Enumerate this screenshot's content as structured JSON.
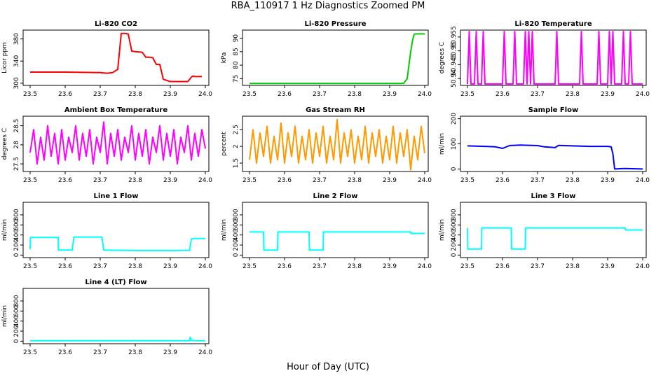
{
  "title": "RBA_110917  1 Hz Diagnostics Zoomed PM",
  "xlabel": "Hour of Day (UTC)",
  "chart_data": [
    {
      "type": "line",
      "title": "Li-820 CO2",
      "ylabel": "Licor ppm",
      "color": "#ff0000",
      "xlim": [
        23.48,
        24.01
      ],
      "ylim": [
        296,
        396
      ],
      "xticks": [
        "23.5",
        "23.6",
        "23.7",
        "23.8",
        "23.9",
        "24.0"
      ],
      "yticks": [
        300,
        340,
        380
      ],
      "series": [
        {
          "x": [
            23.5,
            23.6,
            23.7,
            23.72,
            23.735,
            23.75,
            23.76,
            23.77,
            23.78,
            23.79,
            23.8,
            23.82,
            23.83,
            23.84,
            23.85,
            23.86,
            23.87,
            23.88,
            23.9,
            23.92,
            23.95,
            23.96,
            23.965,
            23.97,
            23.98,
            23.99
          ],
          "y": [
            320,
            320,
            319,
            318,
            319,
            325,
            390,
            390,
            389,
            358,
            357,
            356,
            347,
            347,
            346,
            334,
            334,
            307,
            303,
            303,
            303,
            311,
            313,
            312,
            312,
            312
          ]
        }
      ]
    },
    {
      "type": "line",
      "title": "Li-820 Pressure",
      "ylabel": "kPa",
      "color": "#00cc00",
      "xlim": [
        23.48,
        24.01
      ],
      "ylim": [
        72.5,
        93
      ],
      "xticks": [
        "23.5",
        "23.6",
        "23.7",
        "23.8",
        "23.9",
        "24.0"
      ],
      "yticks": [
        75,
        80,
        85,
        90
      ],
      "series": [
        {
          "x": [
            23.5,
            23.6,
            23.7,
            23.8,
            23.9,
            23.92,
            23.93,
            23.94,
            23.95,
            23.955,
            23.96,
            23.965,
            23.97,
            23.98,
            23.99,
            24.0
          ],
          "y": [
            73.2,
            73.2,
            73.2,
            73.2,
            73.2,
            73.2,
            73.2,
            73.3,
            75,
            80,
            85,
            89,
            91.5,
            91.6,
            91.6,
            91.6
          ]
        }
      ]
    },
    {
      "type": "line",
      "title": "Li-820 Temperature",
      "ylabel": "degrees C",
      "color": "#ff00ff",
      "xlim": [
        23.48,
        24.01
      ],
      "ylim": [
        50.9375,
        50.9575
      ],
      "xticks": [
        "23.5",
        "23.6",
        "23.7",
        "23.8",
        "23.9",
        "24.0"
      ],
      "yticks": [
        50.94,
        50.945,
        50.95,
        50.955
      ],
      "series": [
        {
          "x": [
            23.5,
            23.505,
            23.51,
            23.52,
            23.525,
            23.53,
            23.54,
            23.545,
            23.55,
            23.6,
            23.605,
            23.61,
            23.63,
            23.635,
            23.64,
            23.66,
            23.665,
            23.67,
            23.675,
            23.68,
            23.685,
            23.69,
            23.75,
            23.755,
            23.76,
            23.82,
            23.825,
            23.83,
            23.87,
            23.875,
            23.88,
            23.9,
            23.905,
            23.91,
            23.915,
            23.92,
            23.94,
            23.945,
            23.95,
            23.96,
            23.965,
            23.97,
            24.0
          ],
          "y": [
            50.938,
            50.957,
            50.938,
            50.938,
            50.957,
            50.938,
            50.938,
            50.957,
            50.938,
            50.938,
            50.957,
            50.938,
            50.938,
            50.957,
            50.938,
            50.938,
            50.957,
            50.938,
            50.957,
            50.938,
            50.957,
            50.938,
            50.938,
            50.957,
            50.938,
            50.938,
            50.957,
            50.938,
            50.938,
            50.957,
            50.938,
            50.938,
            50.957,
            50.938,
            50.957,
            50.938,
            50.938,
            50.957,
            50.938,
            50.938,
            50.957,
            50.938,
            50.938
          ]
        }
      ]
    },
    {
      "type": "line",
      "title": "Ambient Box Temperature",
      "ylabel": "degrees C",
      "color": "#ff00ff",
      "xlim": [
        23.48,
        24.01
      ],
      "ylim": [
        27.3,
        28.75
      ],
      "xticks": [
        "23.5",
        "23.6",
        "23.7",
        "23.8",
        "23.9",
        "24.0"
      ],
      "yticks": [
        27.5,
        28.0,
        28.5
      ],
      "series": [
        {
          "x": [
            23.5,
            23.51,
            23.52,
            23.53,
            23.54,
            23.55,
            23.56,
            23.57,
            23.58,
            23.59,
            23.6,
            23.61,
            23.62,
            23.63,
            23.64,
            23.65,
            23.66,
            23.67,
            23.68,
            23.69,
            23.7,
            23.71,
            23.72,
            23.73,
            23.74,
            23.75,
            23.76,
            23.77,
            23.78,
            23.79,
            23.8,
            23.81,
            23.82,
            23.83,
            23.84,
            23.85,
            23.86,
            23.87,
            23.88,
            23.89,
            23.9,
            23.91,
            23.92,
            23.93,
            23.94,
            23.95,
            23.96,
            23.97,
            23.98,
            23.99,
            24.0
          ],
          "y": [
            27.8,
            28.4,
            27.5,
            28.2,
            27.6,
            28.5,
            27.7,
            28.3,
            27.5,
            28.4,
            27.6,
            28.2,
            27.8,
            28.5,
            27.6,
            28.3,
            27.7,
            28.4,
            27.5,
            28.2,
            27.8,
            28.6,
            27.5,
            28.3,
            27.7,
            28.4,
            27.6,
            28.2,
            27.8,
            28.5,
            27.6,
            28.3,
            27.7,
            28.4,
            27.5,
            28.2,
            27.8,
            28.5,
            27.6,
            28.3,
            27.7,
            28.4,
            27.5,
            28.2,
            27.8,
            28.5,
            27.6,
            28.3,
            27.7,
            28.4,
            27.9
          ]
        }
      ]
    },
    {
      "type": "line",
      "title": "Gas Stream RH",
      "ylabel": "percent",
      "color": "#ff9900",
      "xlim": [
        23.48,
        24.01
      ],
      "ylim": [
        1.25,
        2.9
      ],
      "xticks": [
        "23.5",
        "23.6",
        "23.7",
        "23.8",
        "23.9",
        "24.0"
      ],
      "yticks": [
        1.5,
        2.0,
        2.5
      ],
      "series": [
        {
          "x": [
            23.5,
            23.51,
            23.52,
            23.53,
            23.54,
            23.55,
            23.56,
            23.57,
            23.58,
            23.59,
            23.6,
            23.61,
            23.62,
            23.63,
            23.64,
            23.65,
            23.66,
            23.67,
            23.68,
            23.69,
            23.7,
            23.71,
            23.72,
            23.73,
            23.74,
            23.75,
            23.76,
            23.77,
            23.78,
            23.79,
            23.8,
            23.81,
            23.82,
            23.83,
            23.84,
            23.85,
            23.86,
            23.87,
            23.88,
            23.89,
            23.9,
            23.91,
            23.92,
            23.93,
            23.94,
            23.95,
            23.96,
            23.97,
            23.98,
            23.99,
            24.0
          ],
          "y": [
            1.6,
            2.5,
            1.5,
            2.4,
            1.7,
            2.6,
            1.5,
            2.3,
            1.6,
            2.7,
            1.5,
            2.4,
            1.7,
            2.6,
            1.5,
            2.3,
            1.6,
            2.5,
            1.5,
            2.4,
            1.7,
            2.6,
            1.5,
            2.3,
            1.6,
            2.8,
            1.5,
            2.4,
            1.7,
            2.5,
            1.5,
            2.3,
            1.6,
            2.6,
            1.5,
            2.4,
            1.7,
            2.5,
            1.5,
            2.3,
            1.6,
            2.6,
            1.5,
            2.4,
            1.7,
            2.5,
            1.3,
            2.3,
            1.6,
            2.6,
            1.8
          ]
        }
      ]
    },
    {
      "type": "line",
      "title": "Sample Flow",
      "ylabel": "ml/min",
      "color": "#0000ff",
      "xlim": [
        23.48,
        24.01
      ],
      "ylim": [
        -10,
        210
      ],
      "xticks": [
        "23.5",
        "23.6",
        "23.7",
        "23.8",
        "23.9",
        "24.0"
      ],
      "yticks": [
        0,
        100,
        200
      ],
      "series": [
        {
          "x": [
            23.5,
            23.55,
            23.58,
            23.6,
            23.62,
            23.65,
            23.7,
            23.72,
            23.75,
            23.76,
            23.8,
            23.85,
            23.9,
            23.91,
            23.915,
            23.92,
            23.95,
            24.0
          ],
          "y": [
            92,
            90,
            88,
            82,
            93,
            95,
            93,
            88,
            85,
            94,
            92,
            90,
            90,
            88,
            60,
            0,
            2,
            0
          ]
        }
      ]
    },
    {
      "type": "line",
      "title": "Line 1 Flow",
      "ylabel": "ml/min",
      "color": "#00ffff",
      "xlim": [
        23.48,
        24.01
      ],
      "ylim": [
        -50,
        1050
      ],
      "xticks": [
        "23.5",
        "23.6",
        "23.7",
        "23.8",
        "23.9",
        "24.0"
      ],
      "yticks": [
        0,
        200,
        400,
        600,
        800
      ],
      "series": [
        {
          "x": [
            23.5,
            23.501,
            23.58,
            23.581,
            23.62,
            23.625,
            23.705,
            23.71,
            23.8,
            23.9,
            23.955,
            23.96,
            23.97,
            24.0
          ],
          "y": [
            120,
            350,
            350,
            100,
            100,
            360,
            360,
            100,
            90,
            90,
            95,
            320,
            330,
            330
          ]
        }
      ]
    },
    {
      "type": "line",
      "title": "Line 2 Flow",
      "ylabel": "ml/min",
      "color": "#00ffff",
      "xlim": [
        23.48,
        24.01
      ],
      "ylim": [
        -50,
        1050
      ],
      "xticks": [
        "23.5",
        "23.6",
        "23.7",
        "23.8",
        "23.9",
        "24.0"
      ],
      "yticks": [
        0,
        200,
        400,
        600,
        800
      ],
      "series": [
        {
          "x": [
            23.5,
            23.54,
            23.541,
            23.58,
            23.581,
            23.67,
            23.671,
            23.71,
            23.711,
            23.8,
            23.9,
            23.96,
            23.961,
            24.0
          ],
          "y": [
            460,
            460,
            100,
            100,
            460,
            460,
            100,
            100,
            460,
            460,
            460,
            460,
            430,
            430
          ]
        }
      ]
    },
    {
      "type": "line",
      "title": "Line 3 Flow",
      "ylabel": "ml/min",
      "color": "#00ffff",
      "xlim": [
        23.48,
        24.01
      ],
      "ylim": [
        -50,
        1050
      ],
      "xticks": [
        "23.5",
        "23.6",
        "23.7",
        "23.8",
        "23.9",
        "24.0"
      ],
      "yticks": [
        0,
        200,
        400,
        600,
        800
      ],
      "series": [
        {
          "x": [
            23.5,
            23.501,
            23.54,
            23.541,
            23.625,
            23.626,
            23.665,
            23.666,
            23.8,
            23.9,
            23.95,
            23.951,
            24.0
          ],
          "y": [
            540,
            120,
            120,
            540,
            540,
            120,
            120,
            540,
            540,
            540,
            540,
            500,
            500
          ]
        }
      ]
    },
    {
      "type": "line",
      "title": "Line 4 (LT) Flow",
      "ylabel": "ml/min",
      "color": "#00ffff",
      "xlim": [
        23.48,
        24.01
      ],
      "ylim": [
        -50,
        1050
      ],
      "xticks": [
        "23.5",
        "23.6",
        "23.7",
        "23.8",
        "23.9",
        "24.0"
      ],
      "yticks": [
        0,
        200,
        400,
        600,
        800
      ],
      "series": [
        {
          "x": [
            23.5,
            23.6,
            23.7,
            23.8,
            23.9,
            23.955,
            23.957,
            23.96,
            23.97,
            24.0
          ],
          "y": [
            10,
            10,
            10,
            10,
            10,
            10,
            80,
            15,
            10,
            10
          ]
        }
      ]
    }
  ]
}
